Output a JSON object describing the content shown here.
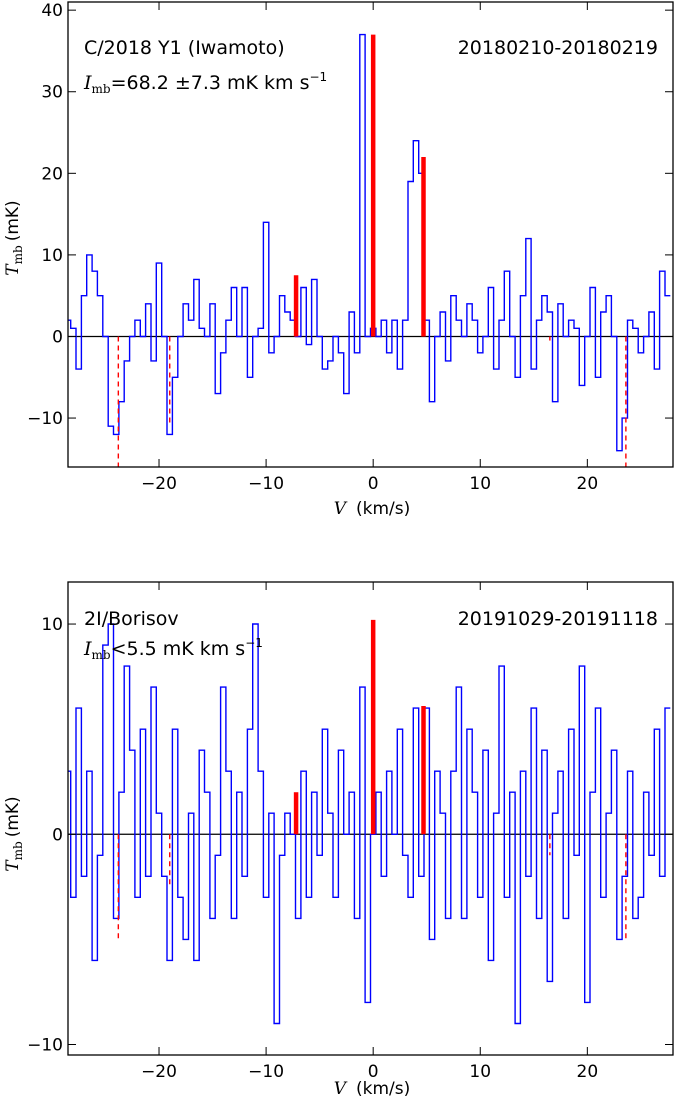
{
  "chart_data": [
    {
      "type": "line",
      "xlabel": "V  (km/s)",
      "ylabel": "T_mb (mK)",
      "ylabel_symbol": "T",
      "ylabel_subscript": "mb",
      "ylabel_unit": "(mK)",
      "xlabel_symbol": "V",
      "xlabel_unit": "(km/s)",
      "xlim": [
        -28.5,
        28
      ],
      "ylim": [
        -16,
        41
      ],
      "x_ticks": [
        -20,
        -10,
        0,
        10,
        20
      ],
      "x_tick_labels": [
        "−20",
        "−10",
        "0",
        "10",
        "20"
      ],
      "y_ticks": [
        -10,
        0,
        10,
        20,
        30,
        40
      ],
      "y_tick_labels": [
        "−10",
        "0",
        "10",
        "20",
        "30",
        "40"
      ],
      "annotations": {
        "object": "C/2018 Y1 (Iwamoto)",
        "dates": "20180210-20180219",
        "intensity_symbol": "I",
        "intensity_subscript": "mb",
        "intensity_text": "=68.2 ±7.3 mK km s",
        "intensity_exponent": "−1"
      },
      "colors": {
        "spectrum": "#0000ff",
        "markers": "#ff0000",
        "zero_line": "#000000"
      },
      "series": [
        {
          "x": [
            -28.5,
            -28.0,
            -27.5,
            -27.0,
            -26.5,
            -26.0,
            -25.5,
            -25.0,
            -24.5,
            -24.0,
            -23.5,
            -23.0,
            -22.5,
            -22.0,
            -21.5,
            -21.0,
            -20.5,
            -20.0,
            -19.5,
            -19.0,
            -18.5,
            -18.0,
            -17.5,
            -17.0,
            -16.5,
            -16.0,
            -15.5,
            -15.0,
            -14.5,
            -14.0,
            -13.5,
            -13.0,
            -12.5,
            -12.0,
            -11.5,
            -11.0,
            -10.5,
            -10.0,
            -9.5,
            -9.0,
            -8.5,
            -8.0,
            -7.5,
            -7.0,
            -6.5,
            -6.0,
            -5.5,
            -5.0,
            -4.5,
            -4.0,
            -3.5,
            -3.0,
            -2.5,
            -2.0,
            -1.5,
            -1.0,
            -0.5,
            0.0,
            0.5,
            1.0,
            1.5,
            2.0,
            2.5,
            3.0,
            3.5,
            4.0,
            4.5,
            5.0,
            5.5,
            6.0,
            6.5,
            7.0,
            7.5,
            8.0,
            8.5,
            9.0,
            9.5,
            10.0,
            10.5,
            11.0,
            11.5,
            12.0,
            12.5,
            13.0,
            13.5,
            14.0,
            14.5,
            15.0,
            15.5,
            16.0,
            16.5,
            17.0,
            17.5,
            18.0,
            18.5,
            19.0,
            19.5,
            20.0,
            20.5,
            21.0,
            21.5,
            22.0,
            22.5,
            23.0,
            23.5,
            24.0,
            24.5,
            25.0,
            25.5,
            26.0,
            26.5,
            27.0,
            27.5
          ],
          "y": [
            2,
            1,
            -4,
            5,
            10,
            8,
            5,
            0,
            -11,
            -12,
            -8,
            -3,
            0,
            2,
            0,
            4,
            -3,
            9,
            0,
            -12,
            -5,
            0,
            4,
            2,
            7,
            1,
            0,
            4,
            -7,
            -2,
            2,
            6,
            0,
            6,
            -5,
            0,
            1,
            14,
            -2,
            0,
            5,
            3,
            2,
            0,
            6,
            -1,
            7,
            0,
            -4,
            -3,
            0,
            -2,
            -7,
            3,
            -2,
            37,
            0,
            1,
            0,
            2,
            -2,
            2,
            -4,
            2,
            19,
            24,
            20,
            2,
            -8,
            0,
            3,
            -3,
            5,
            2,
            0,
            4,
            2,
            -2,
            0,
            6,
            -4,
            2,
            8,
            0,
            -5,
            5,
            12,
            -4,
            2,
            5,
            3,
            -8,
            4,
            0,
            2,
            1,
            -6,
            0,
            6,
            -5,
            3,
            5,
            0,
            -14,
            -10,
            2,
            1,
            -2,
            0,
            3,
            -4,
            8,
            5
          ],
          "markers": [
            {
              "x": -7.2,
              "y": 7.5,
              "style": "solid"
            },
            {
              "x": 0.0,
              "y": 37.0,
              "style": "solid"
            },
            {
              "x": 4.7,
              "y": 22.0,
              "style": "solid"
            },
            {
              "x": -23.8,
              "y": -16.0,
              "style": "dashed"
            },
            {
              "x": -19.0,
              "y": -11.0,
              "style": "dashed"
            },
            {
              "x": 16.5,
              "y": -0.5,
              "style": "dashed"
            },
            {
              "x": 23.6,
              "y": -16.0,
              "style": "dashed"
            }
          ]
        }
      ]
    },
    {
      "type": "line",
      "xlabel": "V  (km/s)",
      "ylabel": "T_mb (mK)",
      "ylabel_symbol": "T",
      "ylabel_subscript": "mb",
      "ylabel_unit": "(mK)",
      "xlabel_symbol": "V",
      "xlabel_unit": "(km/s)",
      "xlim": [
        -28.5,
        28
      ],
      "ylim": [
        -10.5,
        12
      ],
      "x_ticks": [
        -20,
        -10,
        0,
        10,
        20
      ],
      "x_tick_labels": [
        "−20",
        "−10",
        "0",
        "10",
        "20"
      ],
      "y_ticks": [
        -10,
        0,
        10
      ],
      "y_tick_labels": [
        "−10",
        "0",
        "10"
      ],
      "annotations": {
        "object": "2I/Borisov",
        "dates": "20191029-20191118",
        "intensity_symbol": "I",
        "intensity_subscript": "mb",
        "intensity_text": "<5.5 mK km s",
        "intensity_exponent": "−1"
      },
      "colors": {
        "spectrum": "#0000ff",
        "markers": "#ff0000",
        "zero_line": "#000000"
      },
      "series": [
        {
          "x": [
            -28.5,
            -28.0,
            -27.5,
            -27.0,
            -26.5,
            -26.0,
            -25.5,
            -25.0,
            -24.5,
            -24.0,
            -23.5,
            -23.0,
            -22.5,
            -22.0,
            -21.5,
            -21.0,
            -20.5,
            -20.0,
            -19.5,
            -19.0,
            -18.5,
            -18.0,
            -17.5,
            -17.0,
            -16.5,
            -16.0,
            -15.5,
            -15.0,
            -14.5,
            -14.0,
            -13.5,
            -13.0,
            -12.5,
            -12.0,
            -11.5,
            -11.0,
            -10.5,
            -10.0,
            -9.5,
            -9.0,
            -8.5,
            -8.0,
            -7.5,
            -7.0,
            -6.5,
            -6.0,
            -5.5,
            -5.0,
            -4.5,
            -4.0,
            -3.5,
            -3.0,
            -2.5,
            -2.0,
            -1.5,
            -1.0,
            -0.5,
            0.0,
            0.5,
            1.0,
            1.5,
            2.0,
            2.5,
            3.0,
            3.5,
            4.0,
            4.5,
            5.0,
            5.5,
            6.0,
            6.5,
            7.0,
            7.5,
            8.0,
            8.5,
            9.0,
            9.5,
            10.0,
            10.5,
            11.0,
            11.5,
            12.0,
            12.5,
            13.0,
            13.5,
            14.0,
            14.5,
            15.0,
            15.5,
            16.0,
            16.5,
            17.0,
            17.5,
            18.0,
            18.5,
            19.0,
            19.5,
            20.0,
            20.5,
            21.0,
            21.5,
            22.0,
            22.5,
            23.0,
            23.5,
            24.0,
            24.5,
            25.0,
            25.5,
            26.0,
            26.5,
            27.0,
            27.5
          ],
          "y": [
            3,
            -3,
            6,
            -2,
            3,
            -6,
            -1,
            9,
            10,
            -4,
            2,
            8,
            4,
            -3,
            5,
            -2,
            7,
            1,
            -2,
            -6,
            5,
            -3,
            -5,
            1,
            -6,
            4,
            2,
            -4,
            -1,
            7,
            3,
            -4,
            2,
            -2,
            5,
            10,
            3,
            -3,
            1,
            -9,
            -1,
            1,
            0,
            -4,
            3,
            -3,
            2,
            -1,
            5,
            1,
            -3,
            4,
            0,
            2,
            -4,
            7,
            -8,
            0,
            2,
            -2,
            3,
            0,
            5,
            -1,
            -3,
            6,
            -2,
            6,
            -5,
            3,
            1,
            -4,
            3,
            7,
            -4,
            5,
            2,
            -3,
            4,
            -6,
            1,
            8,
            -3,
            2,
            -9,
            3,
            -2,
            6,
            -4,
            4,
            -7,
            1,
            3,
            -4,
            5,
            -1,
            8,
            -8,
            2,
            6,
            -3,
            1,
            4,
            -5,
            -2,
            3,
            -4,
            -3,
            2,
            -1,
            5,
            -2,
            6
          ]
        }
      ],
      "markers": [
        {
          "x": -7.2,
          "y": 2.0,
          "style": "solid"
        },
        {
          "x": 0.0,
          "y": 10.2,
          "style": "solid"
        },
        {
          "x": 4.7,
          "y": 6.1,
          "style": "solid"
        },
        {
          "x": -23.8,
          "y": -5.0,
          "style": "dashed"
        },
        {
          "x": -19.0,
          "y": -2.5,
          "style": "dashed"
        },
        {
          "x": 16.5,
          "y": -1.0,
          "style": "dashed"
        },
        {
          "x": 23.6,
          "y": -5.0,
          "style": "dashed"
        }
      ]
    }
  ]
}
